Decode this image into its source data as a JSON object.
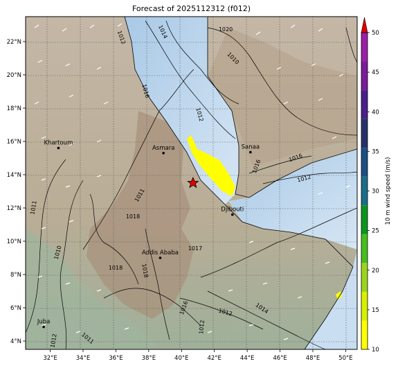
{
  "title": "Forecast of 2025112312 (f012)",
  "map": {
    "lon_range": [
      30.5,
      50.7
    ],
    "lat_range": [
      3.5,
      23.5
    ],
    "lon_ticks": [
      "32°E",
      "34°E",
      "36°E",
      "38°E",
      "40°E",
      "42°E",
      "44°E",
      "46°E",
      "48°E",
      "50°E"
    ],
    "lat_ticks": [
      "22°N",
      "20°N",
      "18°N",
      "16°N",
      "14°N",
      "12°N",
      "10°N",
      "8°N",
      "6°N",
      "4°N"
    ],
    "grid": true,
    "cities": [
      {
        "name": "Khartoum",
        "lon": 32.5,
        "lat": 15.6
      },
      {
        "name": "Asmara",
        "lon": 38.9,
        "lat": 15.3
      },
      {
        "name": "Sanaa",
        "lon": 44.2,
        "lat": 15.35
      },
      {
        "name": "Djibouti",
        "lon": 43.1,
        "lat": 11.6
      },
      {
        "name": "Addis Ababa",
        "lon": 38.7,
        "lat": 9.0
      },
      {
        "name": "Juba",
        "lon": 31.6,
        "lat": 4.85
      }
    ],
    "marker": {
      "symbol": "star",
      "lon": 40.7,
      "lat": 13.5,
      "color": "#e00000"
    },
    "isobar_labels": [
      "1012",
      "1014",
      "1020",
      "1016",
      "1010",
      "1012",
      "1018",
      "1018",
      "1011",
      "1016",
      "1011",
      "1010",
      "1012",
      "1017",
      "1018",
      "1012",
      "1016",
      "1014",
      "1012",
      "1016",
      "1011",
      "1012"
    ]
  },
  "colorbar": {
    "label": "10 m wind speed (m/s)",
    "ticks": [
      "10",
      "15",
      "20",
      "25",
      "30",
      "35",
      "40",
      "45",
      "50"
    ],
    "colors": [
      "#ffff00",
      "#d7f000",
      "#9bd41e",
      "#46be1e",
      "#0a961e",
      "#1b6e8a",
      "#1b4f85",
      "#27306a",
      "#4a1f8c",
      "#7a1c9c",
      "#9c1fa8"
    ],
    "extend_color": "#e00000"
  }
}
